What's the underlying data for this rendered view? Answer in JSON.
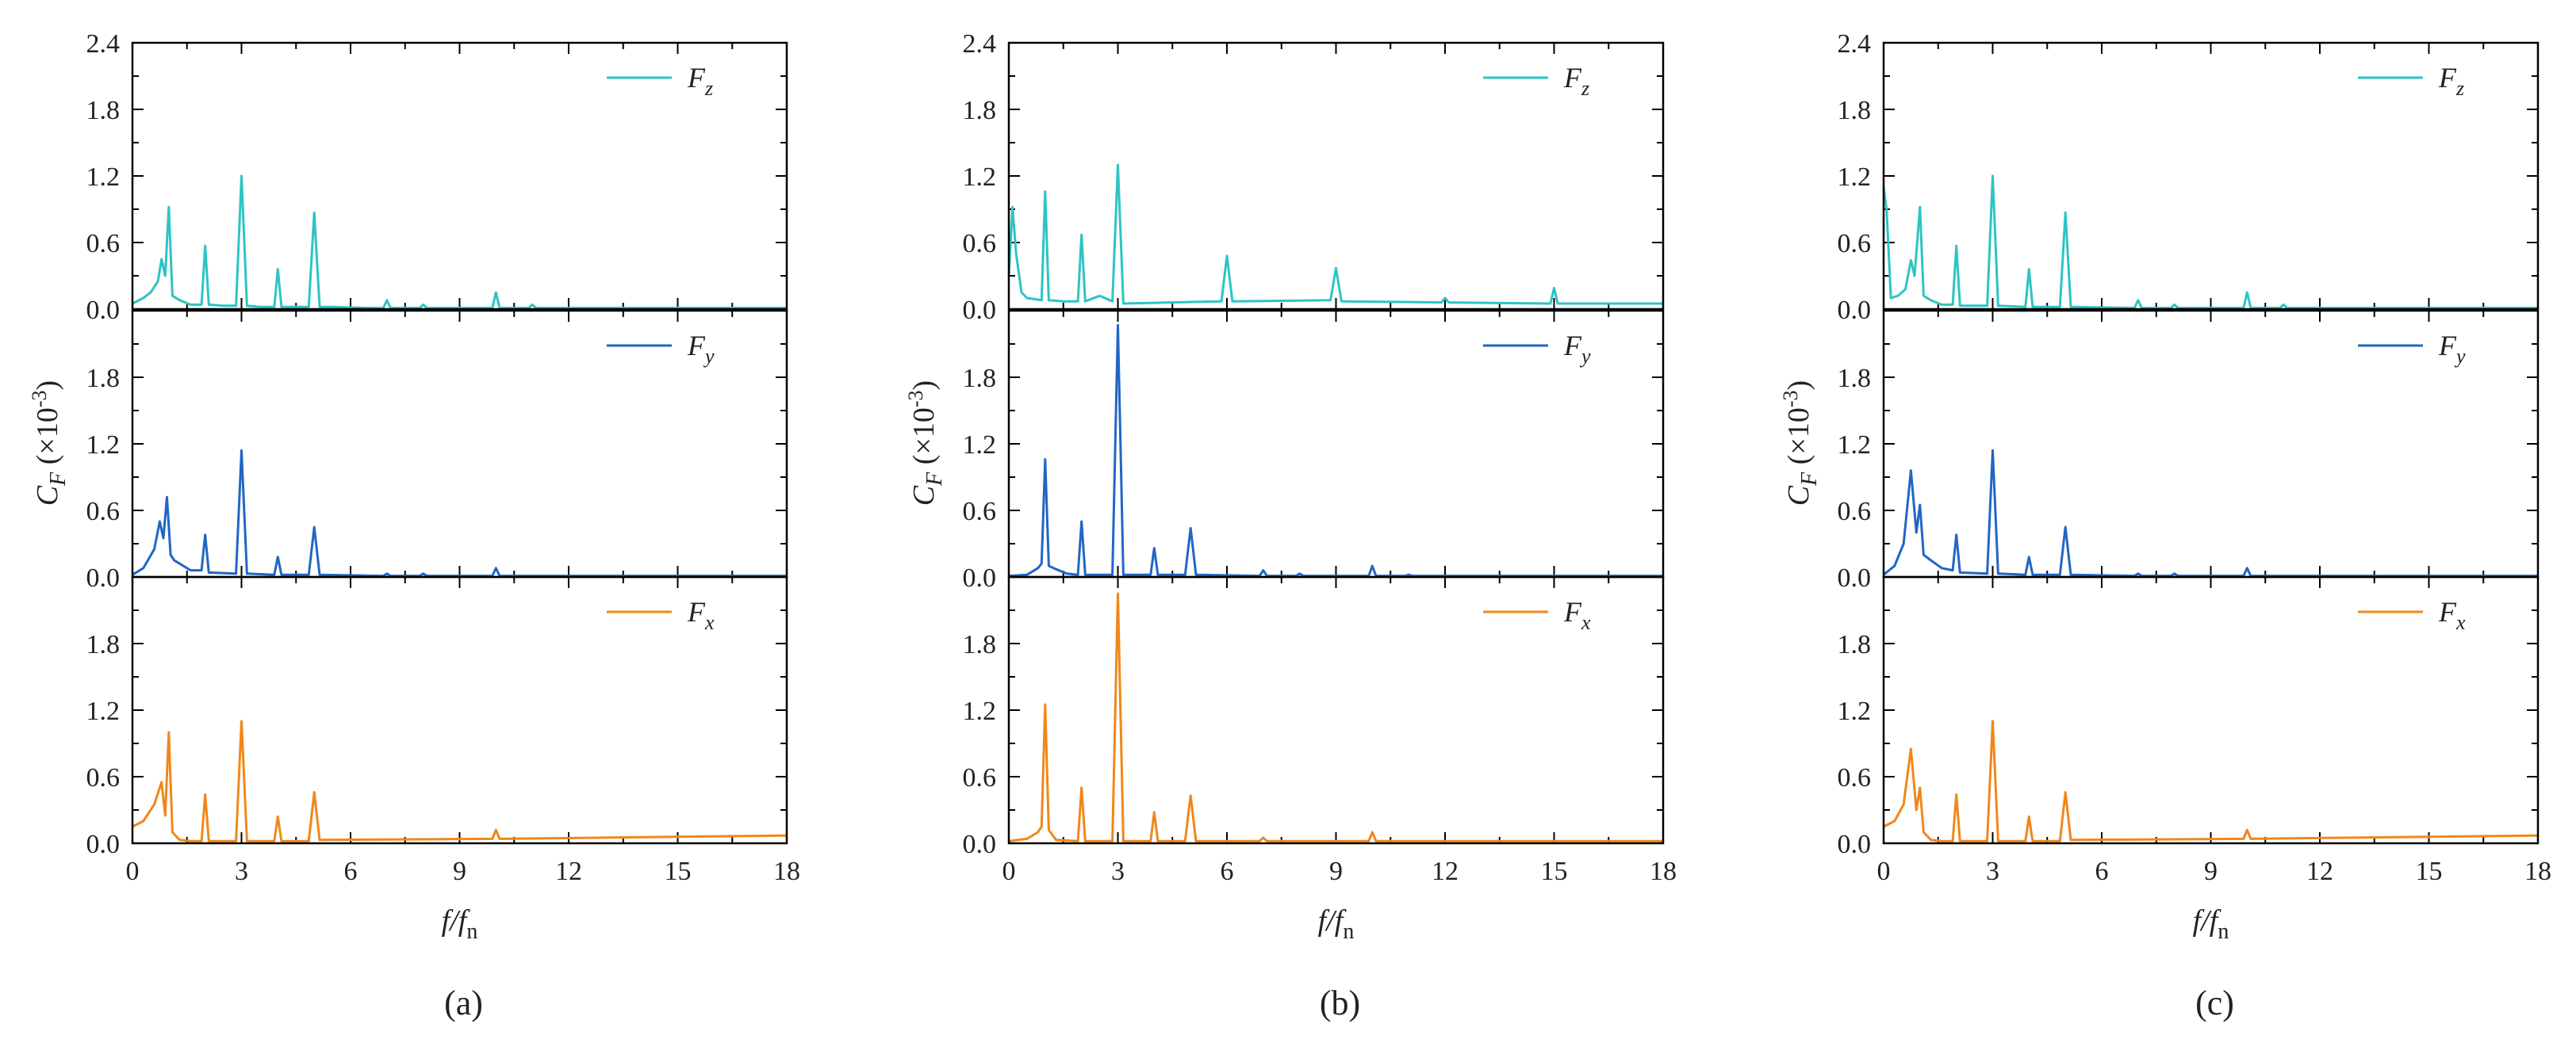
{
  "figure": {
    "x_axis_title": {
      "main": "f/f",
      "sub": "n"
    },
    "y_axis_title": {
      "main": "C",
      "sub": "F",
      "unit_prefix": " (×10",
      "exponent": "-3",
      "unit_suffix": ")"
    },
    "legend_letter": "F"
  },
  "chart_data": [
    {
      "type": "line",
      "caption": "(a)",
      "xlim": [
        0,
        18
      ],
      "xticks": [
        "0",
        "3",
        "6",
        "9",
        "12",
        "15",
        "18"
      ],
      "colors": {
        "Fz": "#2ec4c4",
        "Fy": "#2166c4",
        "Fx": "#f0871a"
      },
      "panels": [
        {
          "name": "Fz",
          "legend_sub": "z",
          "ylim": [
            0,
            2.4
          ],
          "yticks": [
            "0.0",
            "0.6",
            "1.2",
            "1.8",
            "2.4"
          ],
          "x": [
            0,
            0.3,
            0.5,
            0.7,
            0.8,
            0.9,
            1.0,
            1.1,
            1.3,
            1.6,
            1.9,
            2.0,
            2.1,
            2.5,
            2.85,
            3.0,
            3.15,
            3.5,
            3.9,
            4.0,
            4.1,
            4.5,
            4.85,
            5.0,
            5.15,
            5.5,
            6.5,
            6.9,
            7.0,
            7.1,
            7.9,
            8.0,
            8.1,
            9.9,
            10.0,
            10.1,
            10.9,
            11.0,
            11.1,
            18
          ],
          "y": [
            0.05,
            0.1,
            0.15,
            0.25,
            0.45,
            0.3,
            0.92,
            0.12,
            0.08,
            0.04,
            0.04,
            0.57,
            0.04,
            0.03,
            0.03,
            1.2,
            0.03,
            0.02,
            0.02,
            0.36,
            0.02,
            0.02,
            0.02,
            0.87,
            0.02,
            0.02,
            0.01,
            0.01,
            0.08,
            0.01,
            0.01,
            0.04,
            0.01,
            0.01,
            0.15,
            0.01,
            0.01,
            0.04,
            0.01,
            0.01
          ]
        },
        {
          "name": "Fy",
          "legend_sub": "y",
          "ylim": [
            0,
            2.4
          ],
          "yticks": [
            "0.0",
            "0.6",
            "1.2",
            "1.8",
            ""
          ],
          "x": [
            0,
            0.3,
            0.6,
            0.75,
            0.85,
            0.95,
            1.05,
            1.15,
            1.3,
            1.6,
            1.9,
            2.0,
            2.1,
            2.85,
            3.0,
            3.15,
            3.9,
            4.0,
            4.1,
            4.85,
            5.0,
            5.15,
            6.9,
            7.0,
            7.1,
            7.9,
            8.0,
            8.1,
            9.9,
            10.0,
            10.1,
            18
          ],
          "y": [
            0.02,
            0.08,
            0.25,
            0.5,
            0.35,
            0.72,
            0.2,
            0.15,
            0.12,
            0.06,
            0.06,
            0.38,
            0.04,
            0.03,
            1.14,
            0.03,
            0.02,
            0.18,
            0.02,
            0.02,
            0.45,
            0.02,
            0.01,
            0.03,
            0.01,
            0.01,
            0.03,
            0.01,
            0.01,
            0.08,
            0.01,
            0.01
          ]
        },
        {
          "name": "Fx",
          "legend_sub": "x",
          "ylim": [
            0,
            2.4
          ],
          "yticks": [
            "0.0",
            "0.6",
            "1.2",
            "1.8",
            ""
          ],
          "x": [
            0,
            0.3,
            0.6,
            0.8,
            0.9,
            1.0,
            1.1,
            1.3,
            1.6,
            1.9,
            2.0,
            2.1,
            2.85,
            3.0,
            3.15,
            3.9,
            4.0,
            4.1,
            4.85,
            5.0,
            5.15,
            9.9,
            10.0,
            10.1,
            18
          ],
          "y": [
            0.15,
            0.2,
            0.35,
            0.55,
            0.25,
            1.0,
            0.1,
            0.03,
            0.02,
            0.02,
            0.44,
            0.02,
            0.02,
            1.1,
            0.02,
            0.02,
            0.24,
            0.02,
            0.02,
            0.46,
            0.03,
            0.04,
            0.12,
            0.04,
            0.07
          ]
        }
      ]
    },
    {
      "type": "line",
      "caption": "(b)",
      "xlim": [
        0,
        18
      ],
      "xticks": [
        "0",
        "3",
        "6",
        "9",
        "12",
        "15",
        "18"
      ],
      "colors": {
        "Fz": "#2ec4c4",
        "Fy": "#2166c4",
        "Fx": "#f0871a"
      },
      "panels": [
        {
          "name": "Fz",
          "legend_sub": "z",
          "ylim": [
            0,
            2.4
          ],
          "yticks": [
            "0.0",
            "0.6",
            "1.2",
            "1.8",
            "2.4"
          ],
          "x": [
            0,
            0.1,
            0.2,
            0.35,
            0.5,
            0.9,
            1.0,
            1.1,
            1.5,
            1.9,
            2.0,
            2.1,
            2.5,
            2.85,
            3.0,
            3.15,
            5.85,
            6.0,
            6.15,
            8.85,
            9.0,
            9.15,
            11.9,
            12.0,
            12.1,
            14.9,
            15.0,
            15.1,
            18
          ],
          "y": [
            0.3,
            0.92,
            0.5,
            0.15,
            0.1,
            0.08,
            1.06,
            0.08,
            0.07,
            0.07,
            0.67,
            0.07,
            0.12,
            0.07,
            1.3,
            0.05,
            0.07,
            0.48,
            0.07,
            0.08,
            0.37,
            0.07,
            0.06,
            0.1,
            0.06,
            0.05,
            0.19,
            0.05,
            0.05
          ]
        },
        {
          "name": "Fy",
          "legend_sub": "y",
          "ylim": [
            0,
            2.4
          ],
          "yticks": [
            "0.0",
            "0.6",
            "1.2",
            "1.8",
            ""
          ],
          "x": [
            0,
            0.5,
            0.8,
            0.9,
            1.0,
            1.1,
            1.3,
            1.6,
            1.9,
            2.0,
            2.1,
            2.85,
            3.0,
            3.15,
            3.9,
            4.0,
            4.1,
            4.85,
            5.0,
            5.15,
            6.9,
            7.0,
            7.1,
            7.9,
            8.0,
            8.1,
            9.9,
            10.0,
            10.1,
            10.9,
            11.0,
            11.1,
            18
          ],
          "y": [
            0.01,
            0.02,
            0.08,
            0.12,
            1.06,
            0.1,
            0.07,
            0.03,
            0.02,
            0.5,
            0.02,
            0.02,
            2.27,
            0.02,
            0.02,
            0.26,
            0.02,
            0.02,
            0.44,
            0.02,
            0.01,
            0.06,
            0.01,
            0.01,
            0.03,
            0.01,
            0.01,
            0.1,
            0.01,
            0.01,
            0.02,
            0.01,
            0.01
          ]
        },
        {
          "name": "Fx",
          "legend_sub": "x",
          "ylim": [
            0,
            2.4
          ],
          "yticks": [
            "0.0",
            "0.6",
            "1.2",
            "1.8",
            ""
          ],
          "x": [
            0,
            0.5,
            0.8,
            0.9,
            1.0,
            1.1,
            1.3,
            1.9,
            2.0,
            2.1,
            2.85,
            3.0,
            3.15,
            3.9,
            4.0,
            4.1,
            4.85,
            5.0,
            5.15,
            6.9,
            7.0,
            7.1,
            9.9,
            10.0,
            10.1,
            18
          ],
          "y": [
            0.02,
            0.04,
            0.1,
            0.15,
            1.25,
            0.12,
            0.03,
            0.02,
            0.5,
            0.02,
            0.02,
            2.25,
            0.02,
            0.02,
            0.28,
            0.02,
            0.02,
            0.43,
            0.02,
            0.02,
            0.05,
            0.02,
            0.02,
            0.1,
            0.02,
            0.02
          ]
        }
      ]
    },
    {
      "type": "line",
      "caption": "(c)",
      "xlim": [
        0,
        18
      ],
      "xticks": [
        "0",
        "3",
        "6",
        "9",
        "12",
        "15",
        "18"
      ],
      "colors": {
        "Fz": "#2ec4c4",
        "Fy": "#2166c4",
        "Fx": "#f0871a"
      },
      "panels": [
        {
          "name": "Fz",
          "legend_sub": "z",
          "ylim": [
            0,
            2.4
          ],
          "yticks": [
            "0.0",
            "0.6",
            "1.2",
            "1.8",
            "2.4"
          ],
          "x": [
            0,
            0.08,
            0.2,
            0.4,
            0.6,
            0.75,
            0.85,
            1.0,
            1.1,
            1.3,
            1.6,
            1.9,
            2.0,
            2.1,
            2.85,
            3.0,
            3.15,
            3.9,
            4.0,
            4.1,
            4.85,
            5.0,
            5.15,
            6.9,
            7.0,
            7.1,
            7.9,
            8.0,
            8.1,
            9.9,
            10.0,
            10.1,
            10.9,
            11.0,
            11.1,
            18
          ],
          "y": [
            1.1,
            0.9,
            0.1,
            0.12,
            0.18,
            0.44,
            0.3,
            0.92,
            0.12,
            0.08,
            0.04,
            0.04,
            0.57,
            0.03,
            0.03,
            1.2,
            0.03,
            0.02,
            0.36,
            0.02,
            0.02,
            0.87,
            0.02,
            0.01,
            0.08,
            0.01,
            0.01,
            0.04,
            0.01,
            0.01,
            0.15,
            0.01,
            0.01,
            0.04,
            0.01,
            0.01
          ]
        },
        {
          "name": "Fy",
          "legend_sub": "y",
          "ylim": [
            0,
            2.4
          ],
          "yticks": [
            "0.0",
            "0.6",
            "1.2",
            "1.8",
            ""
          ],
          "x": [
            0,
            0.3,
            0.55,
            0.75,
            0.9,
            1.0,
            1.1,
            1.3,
            1.6,
            1.9,
            2.0,
            2.1,
            2.85,
            3.0,
            3.15,
            3.9,
            4.0,
            4.1,
            4.85,
            5.0,
            5.15,
            6.9,
            7.0,
            7.1,
            7.9,
            8.0,
            8.1,
            9.9,
            10.0,
            10.1,
            18
          ],
          "y": [
            0.02,
            0.1,
            0.3,
            0.96,
            0.4,
            0.65,
            0.2,
            0.15,
            0.08,
            0.06,
            0.38,
            0.04,
            0.03,
            1.14,
            0.03,
            0.02,
            0.18,
            0.02,
            0.02,
            0.45,
            0.02,
            0.01,
            0.03,
            0.01,
            0.01,
            0.03,
            0.01,
            0.01,
            0.08,
            0.01,
            0.01
          ]
        },
        {
          "name": "Fx",
          "legend_sub": "x",
          "ylim": [
            0,
            2.4
          ],
          "yticks": [
            "0.0",
            "0.6",
            "1.2",
            "1.8",
            ""
          ],
          "x": [
            0,
            0.3,
            0.55,
            0.75,
            0.9,
            1.0,
            1.1,
            1.3,
            1.6,
            1.9,
            2.0,
            2.1,
            2.85,
            3.0,
            3.15,
            3.9,
            4.0,
            4.1,
            4.85,
            5.0,
            5.15,
            9.9,
            10.0,
            10.1,
            18
          ],
          "y": [
            0.15,
            0.2,
            0.35,
            0.85,
            0.3,
            0.5,
            0.1,
            0.03,
            0.02,
            0.02,
            0.44,
            0.02,
            0.02,
            1.1,
            0.02,
            0.02,
            0.24,
            0.02,
            0.02,
            0.46,
            0.03,
            0.04,
            0.12,
            0.04,
            0.07
          ]
        }
      ]
    }
  ]
}
